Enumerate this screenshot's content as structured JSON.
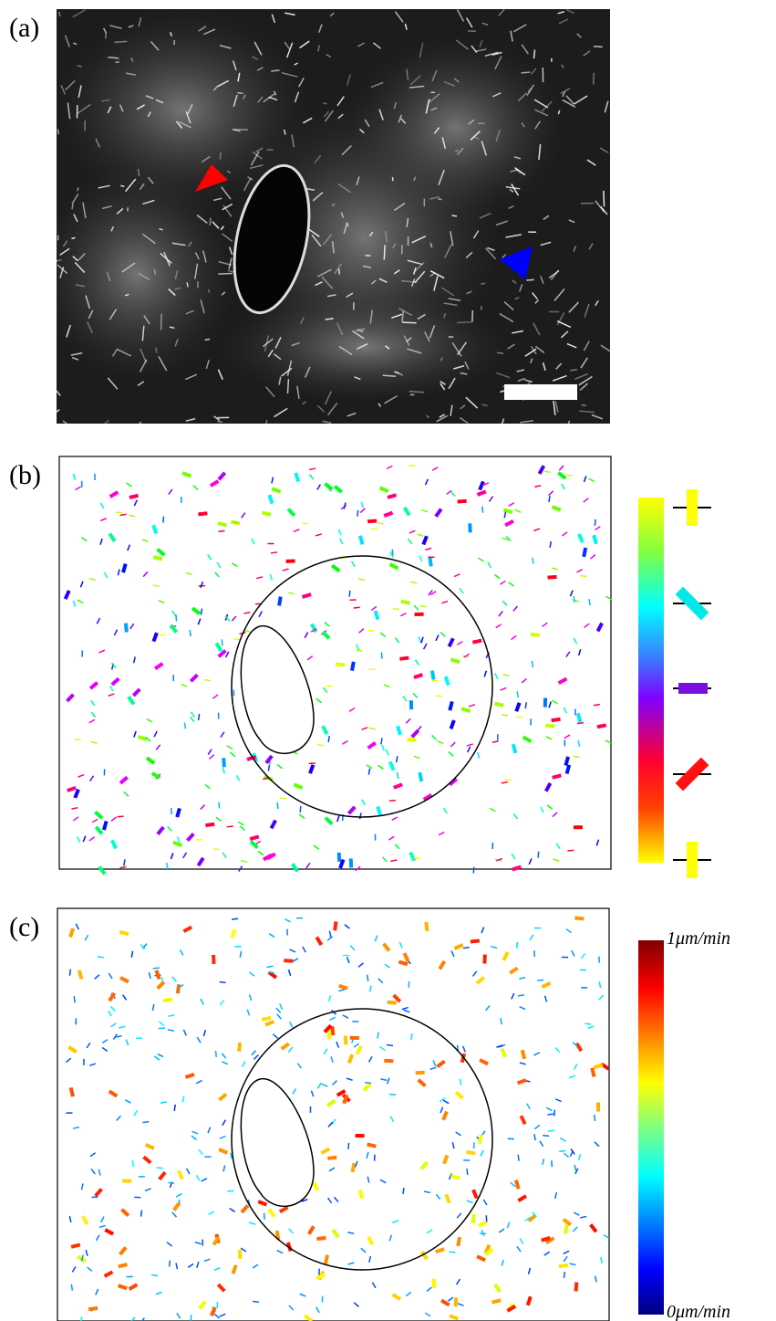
{
  "panels": [
    {
      "label": "(a)"
    },
    {
      "label": "(b)"
    },
    {
      "label": "(c)",
      "colorbar": {
        "max_label": "1μm/min",
        "min_label": "0μm/min"
      }
    }
  ]
}
